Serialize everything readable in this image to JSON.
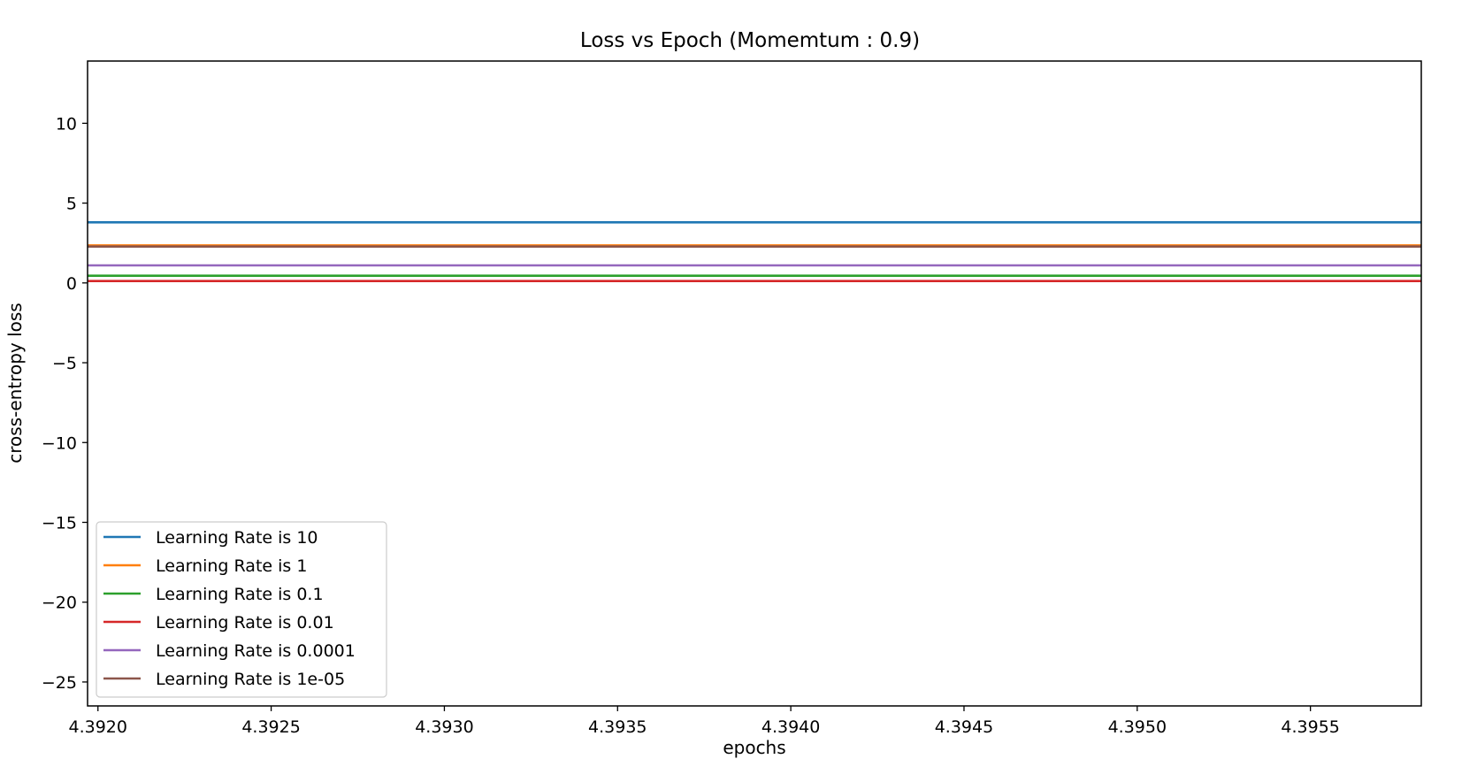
{
  "chart_data": {
    "type": "line",
    "title": "Loss vs Epoch (Momemtum : 0.9)",
    "xlabel": "epochs",
    "ylabel": "cross-entropy loss",
    "xlim": [
      4.39197,
      4.39582
    ],
    "ylim": [
      -26.5,
      13.9
    ],
    "xticks": [
      4.392,
      4.3925,
      4.393,
      4.3935,
      4.394,
      4.3945,
      4.395,
      4.3955
    ],
    "xtick_labels": [
      "4.3920",
      "4.3925",
      "4.3930",
      "4.3935",
      "4.3940",
      "4.3945",
      "4.3950",
      "4.3955"
    ],
    "yticks": [
      -25,
      -20,
      -15,
      -10,
      -5,
      0,
      5,
      10
    ],
    "ytick_labels": [
      "−25",
      "−20",
      "−15",
      "−10",
      "−5",
      "0",
      "5",
      "10"
    ],
    "grid": false,
    "legend_position": "lower-left",
    "x": [
      4.39197,
      4.39582
    ],
    "series": [
      {
        "name": "Learning Rate is 10",
        "color": "#1f77b4",
        "values": [
          3.8,
          3.8
        ]
      },
      {
        "name": "Learning Rate is 1",
        "color": "#ff7f0e",
        "values": [
          2.35,
          2.35
        ]
      },
      {
        "name": "Learning Rate is 0.1",
        "color": "#2ca02c",
        "values": [
          0.45,
          0.45
        ]
      },
      {
        "name": "Learning Rate is 0.01",
        "color": "#d62728",
        "values": [
          0.12,
          0.12
        ]
      },
      {
        "name": "Learning Rate is 0.0001",
        "color": "#9467bd",
        "values": [
          1.1,
          1.1
        ]
      },
      {
        "name": "Learning Rate is 1e-05",
        "color": "#8c564b",
        "values": [
          2.28,
          2.28
        ]
      }
    ]
  }
}
